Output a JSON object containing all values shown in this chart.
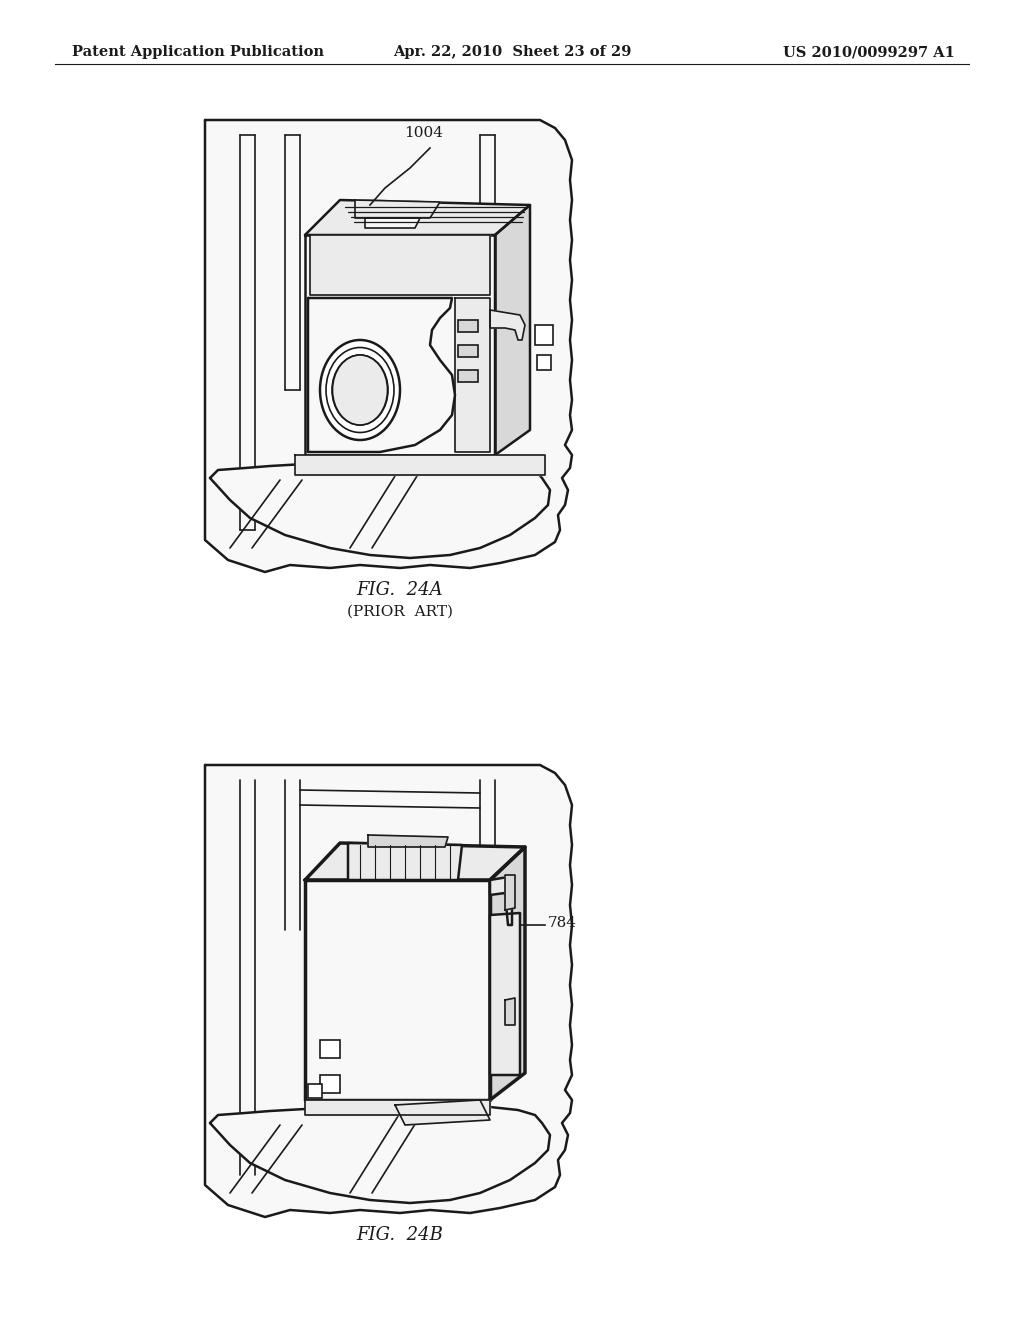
{
  "bg_color": "#ffffff",
  "header_left": "Patent Application Publication",
  "header_center": "Apr. 22, 2010  Sheet 23 of 29",
  "header_right": "US 2010/0099297 A1",
  "header_fontsize": 10.5,
  "fig24a_caption": "FIG.  24A",
  "fig24a_sub": "(PRIOR  ART)",
  "fig24b_caption": "FIG.  24B",
  "caption_fontsize": 13,
  "sub_fontsize": 11,
  "line_color": "#1a1a1a",
  "fill_light": "#f8f8f8",
  "fill_mid": "#ebebeb",
  "fill_dark": "#d8d8d8"
}
